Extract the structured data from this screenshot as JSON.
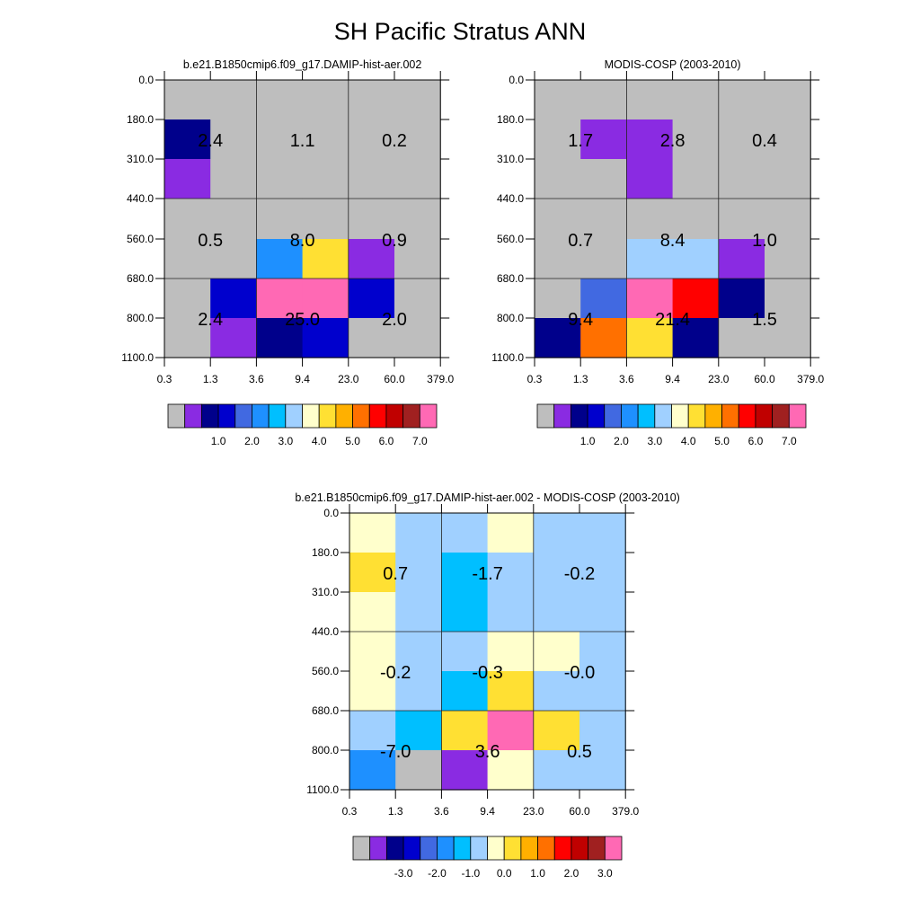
{
  "title": "SH Pacific Stratus ANN",
  "chart_data": [
    {
      "type": "heatmap",
      "title": "b.e21.B1850cmip6.f09_g17.DAMIP-hist-aer.002",
      "x_ticks": [
        "0.3",
        "1.3",
        "3.6",
        "9.4",
        "23.0",
        "60.0",
        "379.0"
      ],
      "y_ticks": [
        "0.0",
        "180.0",
        "310.0",
        "440.0",
        "560.0",
        "680.0",
        "800.0",
        "1100.0"
      ],
      "cell_colors": [
        [
          "#bebebe",
          "#bebebe",
          "#bebebe",
          "#bebebe",
          "#bebebe",
          "#bebebe"
        ],
        [
          "#00008b",
          "#bebebe",
          "#bebebe",
          "#bebebe",
          "#bebebe",
          "#bebebe"
        ],
        [
          "#8a2be2",
          "#bebebe",
          "#bebebe",
          "#bebebe",
          "#bebebe",
          "#bebebe"
        ],
        [
          "#bebebe",
          "#bebebe",
          "#bebebe",
          "#bebebe",
          "#bebebe",
          "#bebebe"
        ],
        [
          "#bebebe",
          "#bebebe",
          "#1e90ff",
          "#ffe033",
          "#8a2be2",
          "#bebebe"
        ],
        [
          "#bebebe",
          "#0000cd",
          "#ff69b4",
          "#ff69b4",
          "#0000cd",
          "#bebebe"
        ],
        [
          "#bebebe",
          "#8a2be2",
          "#00008b",
          "#0000cd",
          "#bebebe",
          "#bebebe"
        ]
      ],
      "labels": [
        [
          "2.4",
          "1.1",
          "0.2"
        ],
        [
          "0.5",
          "8.0",
          "0.9"
        ],
        [
          "2.4",
          "25.0",
          "2.0"
        ]
      ],
      "colorbar": {
        "colors": [
          "#bebebe",
          "#8a2be2",
          "#00008b",
          "#0000cd",
          "#4169e1",
          "#1e90ff",
          "#00bfff",
          "#a0d0ff",
          "#ffffcc",
          "#ffe033",
          "#ffb000",
          "#ff7000",
          "#ff0000",
          "#c00000",
          "#a02020",
          "#ff69b4"
        ],
        "tick_labels": [
          "1.0",
          "2.0",
          "3.0",
          "4.0",
          "5.0",
          "6.0",
          "7.0"
        ]
      }
    },
    {
      "type": "heatmap",
      "title": "MODIS-COSP (2003-2010)",
      "x_ticks": [
        "0.3",
        "1.3",
        "3.6",
        "9.4",
        "23.0",
        "60.0",
        "379.0"
      ],
      "y_ticks": [
        "0.0",
        "180.0",
        "310.0",
        "440.0",
        "560.0",
        "680.0",
        "800.0",
        "1100.0"
      ],
      "cell_colors": [
        [
          "#bebebe",
          "#bebebe",
          "#bebebe",
          "#bebebe",
          "#bebebe",
          "#bebebe"
        ],
        [
          "#bebebe",
          "#8a2be2",
          "#8a2be2",
          "#bebebe",
          "#bebebe",
          "#bebebe"
        ],
        [
          "#bebebe",
          "#bebebe",
          "#8a2be2",
          "#bebebe",
          "#bebebe",
          "#bebebe"
        ],
        [
          "#bebebe",
          "#bebebe",
          "#bebebe",
          "#bebebe",
          "#bebebe",
          "#bebebe"
        ],
        [
          "#bebebe",
          "#bebebe",
          "#a0d0ff",
          "#a0d0ff",
          "#8a2be2",
          "#bebebe"
        ],
        [
          "#bebebe",
          "#4169e1",
          "#ff69b4",
          "#ff0000",
          "#00008b",
          "#bebebe"
        ],
        [
          "#00008b",
          "#ff7000",
          "#ffe033",
          "#00008b",
          "#bebebe",
          "#bebebe"
        ]
      ],
      "labels": [
        [
          "1.7",
          "2.8",
          "0.4"
        ],
        [
          "0.7",
          "8.4",
          "1.0"
        ],
        [
          "9.4",
          "21.4",
          "1.5"
        ]
      ],
      "colorbar": {
        "colors": [
          "#bebebe",
          "#8a2be2",
          "#00008b",
          "#0000cd",
          "#4169e1",
          "#1e90ff",
          "#00bfff",
          "#a0d0ff",
          "#ffffcc",
          "#ffe033",
          "#ffb000",
          "#ff7000",
          "#ff0000",
          "#c00000",
          "#a02020",
          "#ff69b4"
        ],
        "tick_labels": [
          "1.0",
          "2.0",
          "3.0",
          "4.0",
          "5.0",
          "6.0",
          "7.0"
        ]
      }
    },
    {
      "type": "heatmap",
      "title": "b.e21.B1850cmip6.f09_g17.DAMIP-hist-aer.002 - MODIS-COSP (2003-2010)",
      "x_ticks": [
        "0.3",
        "1.3",
        "3.6",
        "9.4",
        "23.0",
        "60.0",
        "379.0"
      ],
      "y_ticks": [
        "0.0",
        "180.0",
        "310.0",
        "440.0",
        "560.0",
        "680.0",
        "800.0",
        "1100.0"
      ],
      "cell_colors": [
        [
          "#ffffcc",
          "#a0d0ff",
          "#a0d0ff",
          "#ffffcc",
          "#a0d0ff",
          "#a0d0ff"
        ],
        [
          "#ffe033",
          "#a0d0ff",
          "#00bfff",
          "#a0d0ff",
          "#a0d0ff",
          "#a0d0ff"
        ],
        [
          "#ffffcc",
          "#a0d0ff",
          "#00bfff",
          "#a0d0ff",
          "#a0d0ff",
          "#a0d0ff"
        ],
        [
          "#ffffcc",
          "#a0d0ff",
          "#a0d0ff",
          "#ffffcc",
          "#ffffcc",
          "#a0d0ff"
        ],
        [
          "#ffffcc",
          "#a0d0ff",
          "#00bfff",
          "#ffe033",
          "#a0d0ff",
          "#a0d0ff"
        ],
        [
          "#a0d0ff",
          "#00bfff",
          "#ffe033",
          "#ff69b4",
          "#ffe033",
          "#a0d0ff"
        ],
        [
          "#1e90ff",
          "#bebebe",
          "#8a2be2",
          "#ffffcc",
          "#a0d0ff",
          "#a0d0ff"
        ]
      ],
      "labels": [
        [
          "0.7",
          "-1.7",
          "-0.2"
        ],
        [
          "-0.2",
          "-0.3",
          "-0.0"
        ],
        [
          "-7.0",
          "3.6",
          "0.5"
        ]
      ],
      "colorbar": {
        "colors": [
          "#bebebe",
          "#8a2be2",
          "#00008b",
          "#0000cd",
          "#4169e1",
          "#1e90ff",
          "#00bfff",
          "#a0d0ff",
          "#ffffcc",
          "#ffe033",
          "#ffb000",
          "#ff7000",
          "#ff0000",
          "#c00000",
          "#a02020",
          "#ff69b4"
        ],
        "tick_labels": [
          "-3.0",
          "-2.0",
          "-1.0",
          "0.0",
          "1.0",
          "2.0",
          "3.0"
        ]
      }
    }
  ]
}
